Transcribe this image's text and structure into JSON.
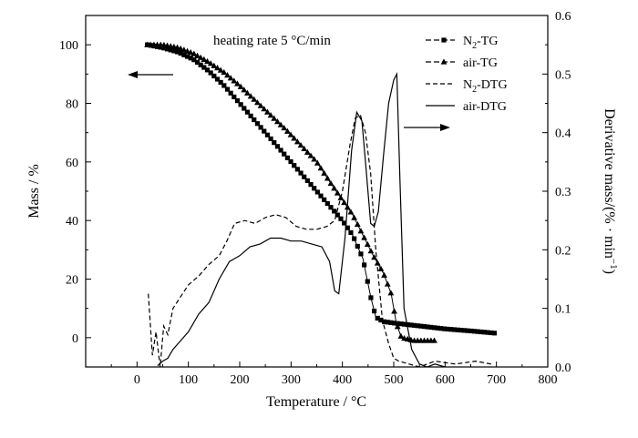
{
  "chart_data": {
    "type": "line",
    "annotation": "heating rate  5 °C/min",
    "xlabel": "Temperature / °C",
    "ylabel_left": "Mass / %",
    "ylabel_right": "Derivative mass/(% · min",
    "ylabel_right_sup": "−1",
    "ylabel_right_close": ")",
    "xlim": [
      -100,
      800
    ],
    "ylim_left": [
      -10,
      110
    ],
    "ylim_right": [
      0,
      0.6
    ],
    "x_ticks": [
      0,
      100,
      200,
      300,
      400,
      500,
      600,
      700,
      800
    ],
    "x_tick_labels": [
      "0",
      "100",
      "200",
      "300",
      "400",
      "500",
      "600",
      "700",
      "800"
    ],
    "y_left_ticks": [
      0,
      20,
      40,
      60,
      80,
      100
    ],
    "y_left_tick_labels": [
      "0",
      "20",
      "40",
      "60",
      "80",
      "100"
    ],
    "y_right_ticks": [
      0,
      0.1,
      0.2,
      0.3,
      0.4,
      0.5,
      0.6
    ],
    "y_right_tick_labels": [
      "0.0",
      "0.1",
      "0.2",
      "0.3",
      "0.4",
      "0.5",
      "0.6"
    ],
    "grid": false,
    "legend_position": "top-right",
    "series": [
      {
        "name_parts": [
          "N",
          "2",
          "-TG"
        ],
        "axis": "left",
        "style": "dash-square",
        "points": [
          [
            20,
            100
          ],
          [
            50,
            99
          ],
          [
            80,
            97.5
          ],
          [
            110,
            95
          ],
          [
            140,
            91
          ],
          [
            170,
            86
          ],
          [
            200,
            80
          ],
          [
            230,
            74
          ],
          [
            260,
            68
          ],
          [
            290,
            62
          ],
          [
            320,
            56
          ],
          [
            350,
            50
          ],
          [
            380,
            44
          ],
          [
            400,
            40
          ],
          [
            420,
            35
          ],
          [
            440,
            27
          ],
          [
            455,
            14
          ],
          [
            465,
            7
          ],
          [
            480,
            5.5
          ],
          [
            500,
            5
          ],
          [
            550,
            4
          ],
          [
            600,
            3
          ],
          [
            650,
            2.3
          ],
          [
            700,
            1.5
          ]
        ]
      },
      {
        "name": "air-TG",
        "axis": "left",
        "style": "dash-triangle",
        "points": [
          [
            20,
            100
          ],
          [
            50,
            100
          ],
          [
            80,
            99
          ],
          [
            110,
            97
          ],
          [
            140,
            94
          ],
          [
            170,
            90.5
          ],
          [
            200,
            86
          ],
          [
            230,
            81
          ],
          [
            260,
            76
          ],
          [
            290,
            71
          ],
          [
            320,
            65.5
          ],
          [
            350,
            60
          ],
          [
            380,
            52
          ],
          [
            400,
            47
          ],
          [
            420,
            42
          ],
          [
            440,
            35
          ],
          [
            460,
            28
          ],
          [
            480,
            22
          ],
          [
            495,
            15
          ],
          [
            505,
            5
          ],
          [
            515,
            0
          ],
          [
            540,
            -1
          ],
          [
            580,
            -1
          ]
        ]
      },
      {
        "name_parts": [
          "N",
          "2",
          "-DTG"
        ],
        "axis": "right",
        "style": "dashed",
        "points": [
          [
            22,
            0.125
          ],
          [
            30,
            0.02
          ],
          [
            37,
            0.06
          ],
          [
            45,
            0
          ],
          [
            52,
            0.07
          ],
          [
            60,
            0.055
          ],
          [
            70,
            0.1
          ],
          [
            85,
            0.12
          ],
          [
            100,
            0.14
          ],
          [
            120,
            0.155
          ],
          [
            140,
            0.175
          ],
          [
            160,
            0.19
          ],
          [
            175,
            0.215
          ],
          [
            190,
            0.245
          ],
          [
            210,
            0.25
          ],
          [
            230,
            0.245
          ],
          [
            250,
            0.255
          ],
          [
            270,
            0.26
          ],
          [
            290,
            0.255
          ],
          [
            310,
            0.24
          ],
          [
            330,
            0.235
          ],
          [
            350,
            0.235
          ],
          [
            370,
            0.24
          ],
          [
            385,
            0.25
          ],
          [
            400,
            0.3
          ],
          [
            415,
            0.38
          ],
          [
            425,
            0.425
          ],
          [
            435,
            0.43
          ],
          [
            445,
            0.4
          ],
          [
            455,
            0.33
          ],
          [
            465,
            0.2
          ],
          [
            478,
            0.08
          ],
          [
            490,
            0.04
          ],
          [
            500,
            0.015
          ],
          [
            510,
            0.01
          ],
          [
            530,
            0.005
          ],
          [
            550,
            0
          ],
          [
            580,
            0.01
          ],
          [
            620,
            0.005
          ],
          [
            660,
            0.01
          ],
          [
            690,
            0.005
          ]
        ]
      },
      {
        "name": "air-DTG",
        "axis": "right",
        "style": "solid",
        "points": [
          [
            40,
            0.002
          ],
          [
            50,
            0.01
          ],
          [
            60,
            0.015
          ],
          [
            70,
            0.03
          ],
          [
            85,
            0.045
          ],
          [
            100,
            0.06
          ],
          [
            120,
            0.09
          ],
          [
            140,
            0.11
          ],
          [
            160,
            0.15
          ],
          [
            180,
            0.18
          ],
          [
            200,
            0.19
          ],
          [
            220,
            0.205
          ],
          [
            240,
            0.21
          ],
          [
            260,
            0.22
          ],
          [
            280,
            0.22
          ],
          [
            300,
            0.215
          ],
          [
            320,
            0.215
          ],
          [
            340,
            0.21
          ],
          [
            360,
            0.205
          ],
          [
            375,
            0.18
          ],
          [
            385,
            0.13
          ],
          [
            393,
            0.125
          ],
          [
            405,
            0.22
          ],
          [
            418,
            0.37
          ],
          [
            428,
            0.435
          ],
          [
            438,
            0.42
          ],
          [
            445,
            0.35
          ],
          [
            455,
            0.245
          ],
          [
            462,
            0.24
          ],
          [
            470,
            0.265
          ],
          [
            480,
            0.36
          ],
          [
            490,
            0.45
          ],
          [
            500,
            0.49
          ],
          [
            506,
            0.5
          ],
          [
            512,
            0.32
          ],
          [
            520,
            0.1
          ],
          [
            535,
            0.03
          ],
          [
            550,
            0.005
          ],
          [
            565,
            0
          ],
          [
            580,
            0.005
          ],
          [
            600,
            0
          ]
        ]
      }
    ]
  }
}
